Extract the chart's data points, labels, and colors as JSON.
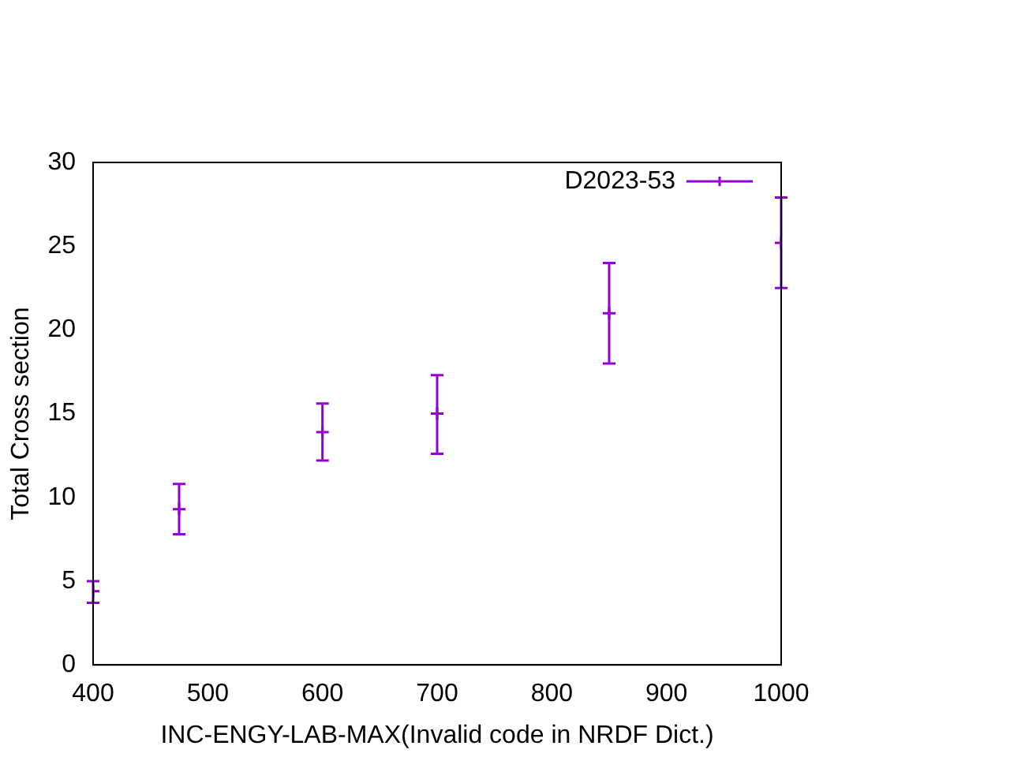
{
  "chart_data": {
    "type": "scatter",
    "xlabel": "INC-ENGY-LAB-MAX(Invalid code in NRDF Dict.)",
    "ylabel": "Total Cross section",
    "xlim": [
      400,
      1000
    ],
    "xticks": [
      400,
      500,
      600,
      700,
      800,
      900,
      1000
    ],
    "ylim": [
      0,
      30
    ],
    "yticks": [
      0,
      5,
      10,
      15,
      20,
      25,
      30
    ],
    "grid": false,
    "legend": "top right",
    "marker": "cross",
    "series": [
      {
        "name": "D2023-53",
        "color": "#9400d3",
        "x": [
          400,
          475,
          600,
          700,
          850,
          1000
        ],
        "values": [
          4.4,
          9.3,
          13.9,
          15,
          21,
          25.2
        ],
        "errors": [
          [
            3.7,
            5.0
          ],
          [
            7.8,
            10.8
          ],
          [
            12.2,
            15.6
          ],
          [
            12.6,
            17.3
          ],
          [
            18.0,
            24.0
          ],
          [
            22.5,
            27.9
          ]
        ]
      }
    ]
  }
}
